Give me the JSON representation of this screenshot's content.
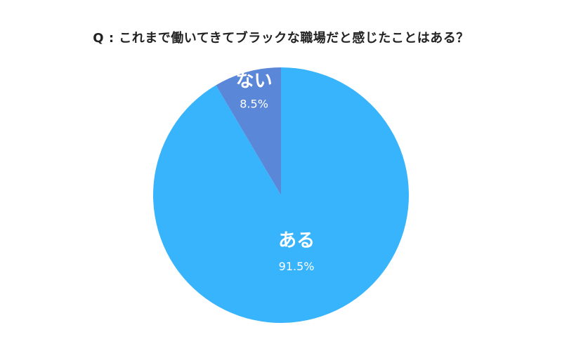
{
  "chart_data": {
    "type": "pie",
    "title": "Q : これまで働いてきてブラックな職場だと感じたことはある？",
    "slices": [
      {
        "label": "ある",
        "value": 91.5,
        "value_label": "91.5%",
        "color": "#38b4fc"
      },
      {
        "label": "ない",
        "value": 8.5,
        "value_label": "8.5%",
        "color": "#5b87d9"
      }
    ],
    "start_angle_deg": 0,
    "direction": "clockwise",
    "legend": "none"
  }
}
